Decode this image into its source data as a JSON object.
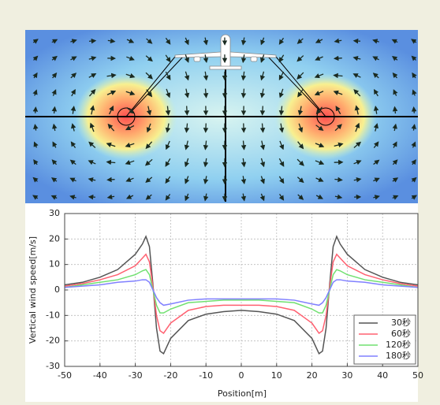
{
  "chart_data": {
    "type": "line",
    "xlabel": "Position[m]",
    "ylabel": "Vertical wind speed[m/s]",
    "x": [
      -50,
      -45,
      -40,
      -35,
      -30,
      -28,
      -27,
      -26,
      -25,
      -24,
      -23,
      -22,
      -20,
      -15,
      -10,
      -5,
      0,
      5,
      10,
      15,
      20,
      22,
      23,
      24,
      25,
      26,
      27,
      28,
      30,
      35,
      40,
      45,
      50
    ],
    "series": [
      {
        "name": "30秒",
        "color": "#555555",
        "values": [
          2,
          3,
          5,
          8,
          14,
          18,
          21,
          17,
          2,
          -15,
          -24,
          -25,
          -19,
          -12,
          -9.5,
          -8.5,
          -8,
          -8.5,
          -9.5,
          -12,
          -19,
          -25,
          -24,
          -15,
          2,
          17,
          21,
          18,
          14,
          8,
          5,
          3,
          2
        ]
      },
      {
        "name": "60秒",
        "color": "#ff6070",
        "values": [
          1.5,
          2.5,
          4,
          6,
          9.5,
          12.5,
          14,
          11,
          1,
          -10,
          -16,
          -17,
          -13,
          -8,
          -6.5,
          -6,
          -6,
          -6,
          -6.5,
          -8,
          -13,
          -17,
          -16,
          -10,
          1,
          11,
          14,
          12.5,
          9.5,
          6,
          4,
          2.5,
          1.5
        ]
      },
      {
        "name": "120秒",
        "color": "#70e070",
        "values": [
          1,
          2,
          3,
          4,
          6,
          7.5,
          8,
          6,
          0,
          -6,
          -9,
          -9,
          -7.5,
          -5,
          -4.5,
          -4,
          -4,
          -4,
          -4.5,
          -5,
          -7.5,
          -9,
          -9,
          -6,
          0,
          6,
          8,
          7.5,
          6,
          4,
          3,
          2,
          1
        ]
      },
      {
        "name": "180秒",
        "color": "#8080ff",
        "values": [
          1,
          1.5,
          2,
          3,
          3.5,
          4,
          4,
          3,
          0,
          -3,
          -5,
          -6,
          -5.5,
          -4,
          -3.5,
          -3.5,
          -3.5,
          -3.5,
          -3.5,
          -4,
          -5.5,
          -6,
          -5,
          -3,
          0,
          3,
          4,
          4,
          3.5,
          3,
          2,
          1.5,
          1
        ]
      }
    ],
    "xlim": [
      -50,
      50
    ],
    "ylim": [
      -30,
      30
    ],
    "xticks": [
      -50,
      -40,
      -30,
      -20,
      -10,
      0,
      10,
      20,
      30,
      40,
      50
    ],
    "yticks": [
      -30,
      -20,
      -10,
      0,
      10,
      20,
      30
    ],
    "grid": true,
    "legend": "lower right"
  }
}
